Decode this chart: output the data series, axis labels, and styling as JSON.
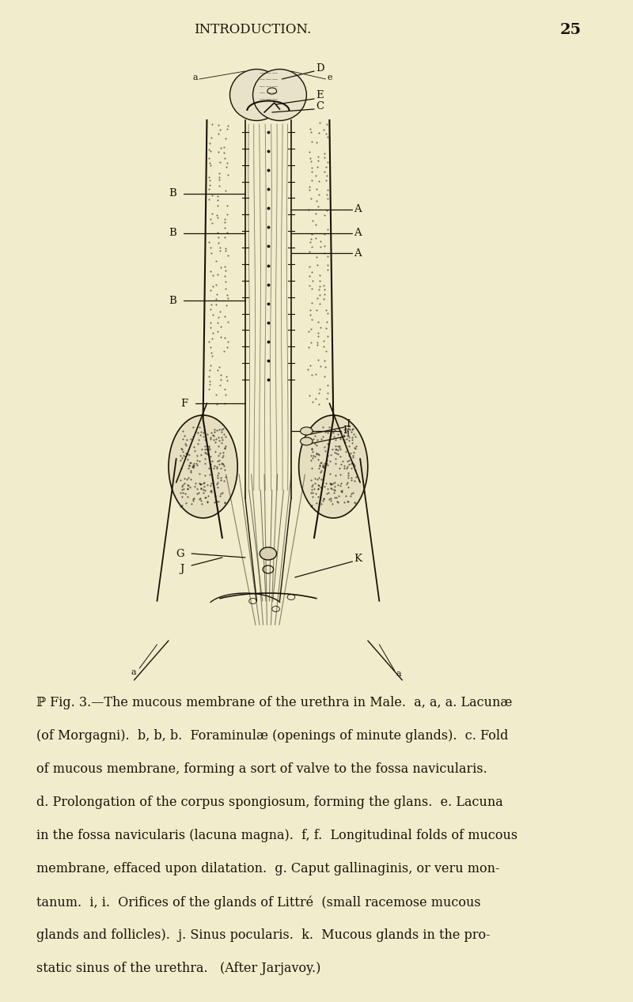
{
  "bg_color": "#f0edcc",
  "header_text": "INTRODUCTION.",
  "page_number": "25",
  "text_color": "#1a1208",
  "line_color": "#1a1208",
  "label_fontsize": 9.5,
  "caption_lines": [
    [
      "ℙ F",
      "ig. 3.—The mucous membrane of the urethra in Male.  ",
      "a, a, a.",
      " Lacunæ"
    ],
    [
      "(of Morgagni).  ",
      "b, b, b.",
      "  Foraminulæ (openings of minute glands).  ",
      "c.",
      " Fold"
    ],
    [
      "of mucous membrane, forming a sort of valve to the fossa navicularis."
    ],
    [
      "d.",
      " Prolongation of the corpus spongiosum, forming the glans.  ",
      "e.",
      " Lacuna"
    ],
    [
      "in the fossa navicularis (lacuna magna).  ",
      "f, f.",
      "  Longitudinal folds of mucous"
    ],
    [
      "membrane, effaced upon dilatation.  ",
      "g.",
      " Caput gallinaginis, or veru mon-"
    ],
    [
      "tanum.  ",
      "i, i.",
      "  Orifices of the glands of Littré  (small racemose mucous"
    ],
    [
      "glands and follicles).  ",
      "j.",
      " Sinus pocularis.  ",
      "k.",
      "  Mucous glands in the pro-"
    ],
    [
      "static sinus of the urethra.   (After Jarjavoy.)"
    ]
  ]
}
